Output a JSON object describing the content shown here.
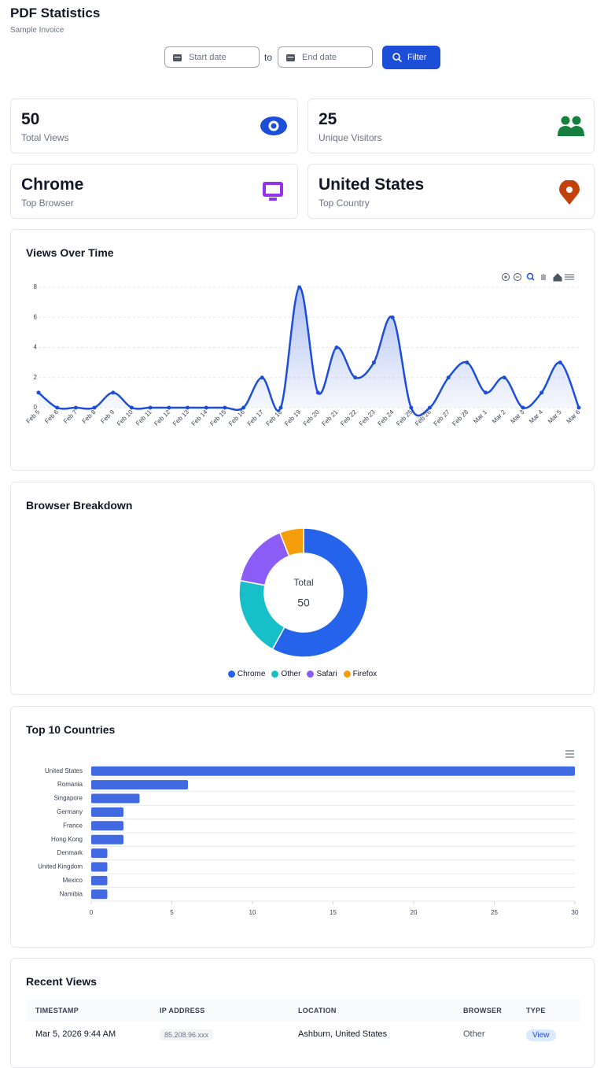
{
  "header": {
    "title": "PDF Statistics",
    "subtitle": "Sample Invoice"
  },
  "filter": {
    "start_placeholder": "Start date",
    "separator": "to",
    "end_placeholder": "End date",
    "button": "Filter"
  },
  "stats": [
    {
      "value": 50,
      "label": "Total Views"
    },
    {
      "value": 25,
      "label": "Unique Visitors"
    },
    {
      "value": "Chrome",
      "label": "Top Browser"
    },
    {
      "value": "United States",
      "label": "Top Country"
    }
  ],
  "chart_data": [
    {
      "type": "line",
      "title": "Views Over Time",
      "categories": [
        "Feb 5",
        "Feb 6",
        "Feb 7",
        "Feb 8",
        "Feb 9",
        "Feb 10",
        "Feb 11",
        "Feb 12",
        "Feb 13",
        "Feb 14",
        "Feb 15",
        "Feb 16",
        "Feb 17",
        "Feb 18",
        "Feb 19",
        "Feb 20",
        "Feb 21",
        "Feb 22",
        "Feb 23",
        "Feb 24",
        "Feb 25",
        "Feb 26",
        "Feb 27",
        "Feb 28",
        "Mar 1",
        "Mar 2",
        "Mar 3",
        "Mar 4",
        "Mar 5",
        "Mar 6"
      ],
      "values": [
        1,
        0,
        0,
        0,
        1,
        0,
        0,
        0,
        0,
        0,
        0,
        0,
        2,
        0,
        8,
        1,
        4,
        2,
        3,
        6,
        0,
        0,
        2,
        3,
        1,
        2,
        0,
        1,
        3,
        0
      ],
      "color": "#1d4ed8",
      "ylim": [
        0,
        8
      ],
      "yticks": [
        0,
        2,
        4,
        6,
        8
      ],
      "grid": true
    },
    {
      "type": "pie",
      "title": "Browser Breakdown",
      "donut": true,
      "categories": [
        "Chrome",
        "Other",
        "Safari",
        "Firefox"
      ],
      "values": [
        29,
        10,
        8,
        3
      ],
      "colors": [
        "#2563eb",
        "#17bfc9",
        "#8b5cf6",
        "#f59e0b"
      ],
      "center_label": "Total",
      "total": 50,
      "legend": "bottom"
    },
    {
      "type": "bar",
      "orientation": "horizontal",
      "title": "Top 10 Countries",
      "categories": [
        "United States",
        "Romania",
        "Singapore",
        "Germany",
        "France",
        "Hong Kong",
        "Denmark",
        "United Kingdom",
        "Mexico",
        "Namibia"
      ],
      "values": [
        30,
        6,
        3,
        2,
        2,
        2,
        1,
        1,
        1,
        1
      ],
      "color": "#4169e1",
      "xlim": [
        0,
        30
      ],
      "xticks": [
        0,
        5,
        10,
        15,
        20,
        25,
        30
      ]
    }
  ],
  "recent_views": {
    "title": "Recent Views",
    "columns": [
      "TIMESTAMP",
      "IP ADDRESS",
      "LOCATION",
      "BROWSER",
      "TYPE"
    ],
    "rows": [
      [
        "Mar 5, 2026 9:44 AM",
        "85.208.96.xxx",
        "Ashburn, United States",
        "Other",
        "View"
      ]
    ]
  }
}
